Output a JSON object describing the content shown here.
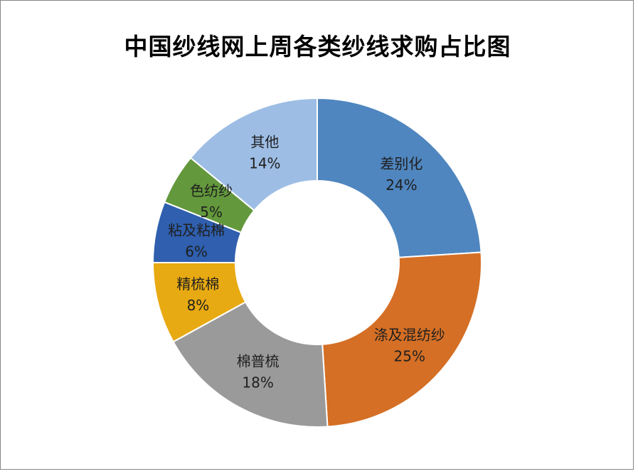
{
  "chart_data": {
    "type": "pie",
    "variant": "donut",
    "title": "中国纱线网上周各类纱线求购占比图",
    "categories": [
      "差别化",
      "涤及混纺纱",
      "棉普梳",
      "精梳棉",
      "粘及粘棉",
      "色纺纱",
      "其他"
    ],
    "values": [
      24,
      25,
      18,
      8,
      6,
      5,
      14
    ],
    "value_labels": [
      "24%",
      "25%",
      "18%",
      "8%",
      "6%",
      "5%",
      "14%"
    ],
    "colors": [
      "#4f86bf",
      "#d46f25",
      "#9a9a9a",
      "#e8aa12",
      "#2f5fae",
      "#63983c",
      "#9dbde4"
    ],
    "legend": "none",
    "start": "top, clockwise"
  }
}
